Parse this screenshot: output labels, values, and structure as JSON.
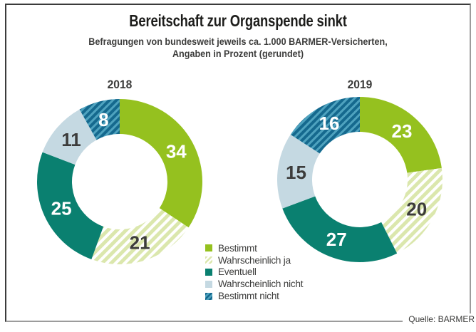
{
  "title": "Bereitschaft zur Organspende sinkt",
  "subtitle": {
    "line1": "Befragungen von bundesweit jeweils ca. 1.000 BARMER-Versicherten,",
    "line2": "Angaben in Prozent (gerundet)"
  },
  "source": "Quelle: BARMER",
  "colors": {
    "bestimmt_green": "#95c11f",
    "wahrscheinlich_ja_stripe": "#dbe7ad",
    "wahrscheinlich_ja_bg": "#ffffff",
    "eventuell_teal": "#0a8070",
    "wahrscheinlich_nicht_lightblue": "#c5d9e2",
    "bestimmt_nicht_darkblue": "#15698e",
    "bestimmt_nicht_stripe": "#4fa3bf",
    "text_dark": "#3c3c3b",
    "label_light": "#ffffff",
    "frame_border_dark": "#3b3b3b",
    "frame_border_gray": "#9c9c9c"
  },
  "legend": [
    {
      "label": "Bestimmt",
      "swatch": {
        "type": "solid",
        "color": "#95c11f"
      }
    },
    {
      "label": "Wahrscheinlich ja",
      "swatch": {
        "type": "stripes",
        "fg": "#dbe7ad",
        "bg": "#ffffff"
      }
    },
    {
      "label": "Eventuell",
      "swatch": {
        "type": "solid",
        "color": "#0a8070"
      }
    },
    {
      "label": "Wahrscheinlich nicht",
      "swatch": {
        "type": "solid",
        "color": "#c5d9e2"
      }
    },
    {
      "label": "Bestimmt nicht",
      "swatch": {
        "type": "stripes",
        "fg": "#15698e",
        "bg": "#4fa3bf"
      }
    }
  ],
  "chart_data": {
    "type": "pie",
    "variant": "donut",
    "title": "Bereitschaft zur Organspende sinkt",
    "unit": "Prozent (gerundet)",
    "legend_position": "bottom-center",
    "categories": [
      "Bestimmt",
      "Wahrscheinlich ja",
      "Eventuell",
      "Wahrscheinlich nicht",
      "Bestimmt nicht"
    ],
    "charts": [
      {
        "year": "2018",
        "values": [
          34,
          21,
          25,
          11,
          8
        ]
      },
      {
        "year": "2019",
        "values": [
          23,
          20,
          27,
          15,
          16
        ]
      }
    ],
    "segment_fill_keys": [
      "bestimmt_green",
      "pattern_pale",
      "eventuell_teal",
      "wahrscheinlich_nicht_lightblue",
      "pattern_blue"
    ],
    "label_colors": [
      "#ffffff",
      "#3c3c3b",
      "#ffffff",
      "#3c3c3b",
      "#ffffff"
    ]
  }
}
